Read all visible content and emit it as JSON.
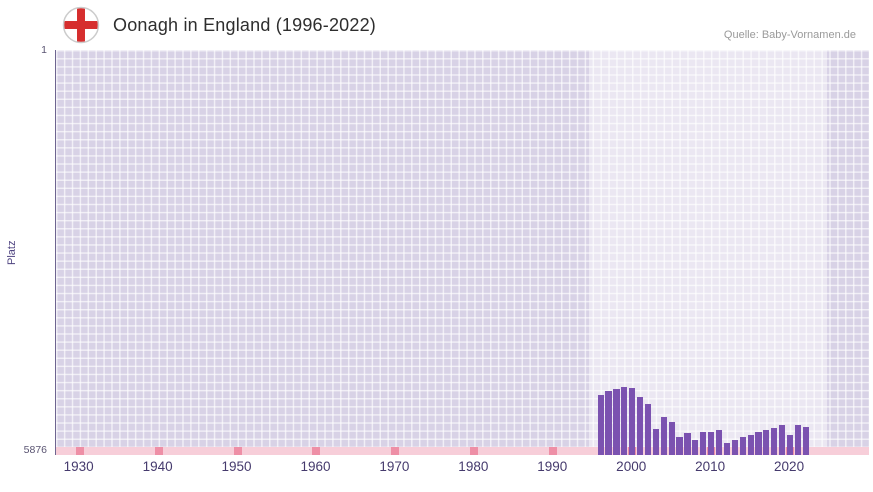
{
  "header": {
    "title": "Oonagh in England (1996-2022)",
    "source": "Quelle: Baby-Vornamen.de",
    "flag_icon": "england-flag-icon"
  },
  "y_axis": {
    "top_label": "1",
    "bottom_label": "5876",
    "title": "Platz"
  },
  "chart_data": {
    "type": "bar",
    "title": "Oonagh in England (1996-2022)",
    "xlabel": "",
    "ylabel": "Platz",
    "y_inverted": true,
    "ylim": [
      1,
      5876
    ],
    "x_range": [
      1927,
      2030
    ],
    "x_ticks": [
      1930,
      1940,
      1950,
      1960,
      1970,
      1980,
      1990,
      2000,
      2010,
      2020
    ],
    "highlight_range": [
      1994.5,
      2024.7
    ],
    "grid": true,
    "legend_position": "none",
    "x": [
      1996,
      1997,
      1998,
      1999,
      2000,
      2001,
      2002,
      2003,
      2004,
      2005,
      2006,
      2007,
      2008,
      2009,
      2010,
      2011,
      2012,
      2013,
      2014,
      2015,
      2016,
      2017,
      2018,
      2019,
      2020,
      2021,
      2022
    ],
    "values": [
      5010,
      4950,
      4920,
      4890,
      4905,
      5040,
      5140,
      5500,
      5320,
      5390,
      5620,
      5560,
      5660,
      5545,
      5540,
      5515,
      5700,
      5655,
      5615,
      5585,
      5545,
      5515,
      5485,
      5440,
      5585,
      5440,
      5465
    ],
    "colors": {
      "bar": "#7b52b0",
      "plot_background": "#d8d2e6",
      "highlight_band": "#eeeaf6",
      "baseline_strip": "#f7ced9",
      "decade_marker": "#ee8fa6",
      "axis_text": "#453a6d",
      "flag_cross": "#d62e2e"
    }
  }
}
